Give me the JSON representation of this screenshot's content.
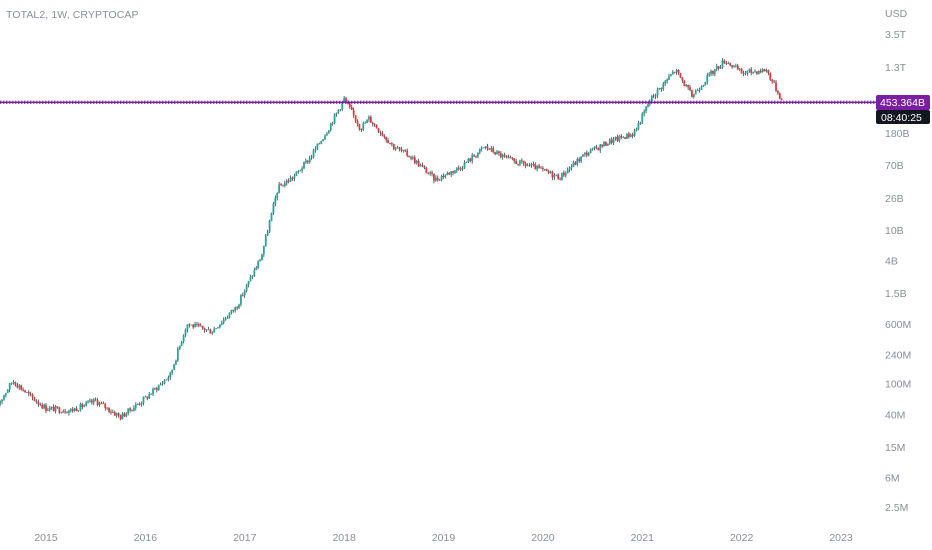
{
  "header": {
    "symbol": "TOTAL2, 1W, CRYPTOCAP"
  },
  "price_badge": {
    "value": "453.364B",
    "countdown": "08:40:25"
  },
  "colors": {
    "up": "#26a69a",
    "down": "#e0393e",
    "wick": "#1e222d",
    "level": "#7b1fa2",
    "badge_bg": "#7b1fa2",
    "countdown_bg": "#131722"
  },
  "chart_data": {
    "type": "candlestick",
    "title": "",
    "xlabel": "",
    "ylabel": "",
    "y_unit_label": "USD",
    "y_scale": "log",
    "y_ticks": [
      "3.5T",
      "1.3T",
      "180B",
      "70B",
      "26B",
      "10B",
      "4B",
      "1.5B",
      "600M",
      "240M",
      "100M",
      "40M",
      "15M",
      "6M",
      "2.5M"
    ],
    "x_ticks": [
      "2015",
      "2016",
      "2017",
      "2018",
      "2019",
      "2020",
      "2021",
      "2022",
      "2023"
    ],
    "horizontal_level": {
      "value": "453.364B"
    },
    "approx_path": [
      [
        "2014-07",
        50000000
      ],
      [
        "2014-09",
        110000000
      ],
      [
        "2014-11",
        70000000
      ],
      [
        "2015-01",
        48000000
      ],
      [
        "2015-04",
        45000000
      ],
      [
        "2015-07",
        60000000
      ],
      [
        "2015-10",
        37000000
      ],
      [
        "2016-01",
        65000000
      ],
      [
        "2016-04",
        130000000
      ],
      [
        "2016-06",
        600000000
      ],
      [
        "2016-09",
        480000000
      ],
      [
        "2016-12",
        1000000000
      ],
      [
        "2017-03",
        4500000000
      ],
      [
        "2017-05",
        35000000000
      ],
      [
        "2017-07",
        50000000000
      ],
      [
        "2017-09",
        90000000000
      ],
      [
        "2017-11",
        200000000000
      ],
      [
        "2018-01",
        500000000000
      ],
      [
        "2018-03",
        210000000000
      ],
      [
        "2018-04",
        280000000000
      ],
      [
        "2018-07",
        120000000000
      ],
      [
        "2018-09",
        90000000000
      ],
      [
        "2018-12",
        45000000000
      ],
      [
        "2019-03",
        65000000000
      ],
      [
        "2019-06",
        120000000000
      ],
      [
        "2019-09",
        80000000000
      ],
      [
        "2019-12",
        65000000000
      ],
      [
        "2020-03",
        48000000000
      ],
      [
        "2020-06",
        95000000000
      ],
      [
        "2020-09",
        140000000000
      ],
      [
        "2020-12",
        180000000000
      ],
      [
        "2021-01",
        300000000000
      ],
      [
        "2021-02",
        500000000000
      ],
      [
        "2021-05",
        1200000000000
      ],
      [
        "2021-07",
        550000000000
      ],
      [
        "2021-09",
        1000000000000
      ],
      [
        "2021-11",
        1600000000000
      ],
      [
        "2022-01",
        1100000000000
      ],
      [
        "2022-04",
        1200000000000
      ],
      [
        "2022-06",
        453364000000
      ]
    ]
  }
}
